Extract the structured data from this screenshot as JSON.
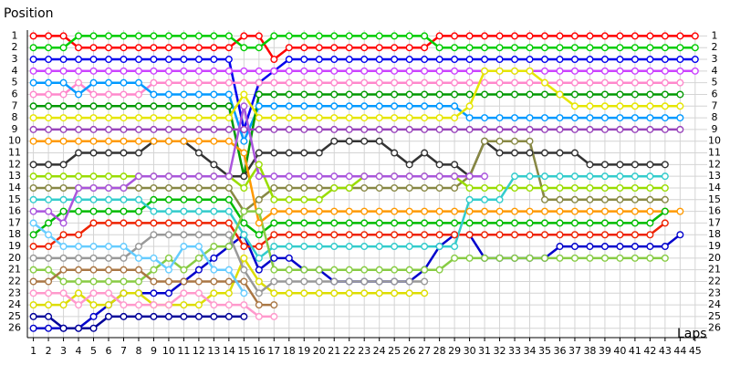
{
  "chart_data": {
    "type": "line",
    "y_label": "Position",
    "x_label": "Laps",
    "y_inverted": true,
    "grid": true,
    "marker": "circle",
    "xlim": [
      0.6,
      45.8
    ],
    "ylim": [
      0.5,
      26.8
    ],
    "x": [
      1,
      2,
      3,
      4,
      5,
      6,
      7,
      8,
      9,
      10,
      11,
      12,
      13,
      14,
      15,
      16,
      17,
      18,
      19,
      20,
      21,
      22,
      23,
      24,
      25,
      26,
      27,
      28,
      29,
      30,
      31,
      32,
      33,
      34,
      35,
      36,
      37,
      38,
      39,
      40,
      41,
      42,
      43,
      44,
      45
    ],
    "xticks": [
      1,
      2,
      3,
      4,
      5,
      6,
      7,
      8,
      9,
      10,
      11,
      12,
      13,
      14,
      15,
      16,
      17,
      18,
      19,
      20,
      21,
      22,
      23,
      24,
      25,
      26,
      27,
      28,
      29,
      30,
      31,
      32,
      33,
      34,
      35,
      36,
      37,
      38,
      39,
      40,
      41,
      42,
      43,
      44,
      45
    ],
    "yticks": [
      1,
      2,
      3,
      4,
      5,
      6,
      7,
      8,
      9,
      10,
      11,
      12,
      13,
      14,
      15,
      16,
      17,
      18,
      19,
      20,
      21,
      22,
      23,
      24,
      25,
      26
    ],
    "series": [
      {
        "color": "#ff0000",
        "values": [
          1,
          1,
          1,
          2,
          2,
          2,
          2,
          2,
          2,
          2,
          2,
          2,
          2,
          2,
          1,
          1,
          3,
          2,
          2,
          2,
          2,
          2,
          2,
          2,
          2,
          2,
          2,
          1,
          1,
          1,
          1,
          1,
          1,
          1,
          1,
          1,
          1,
          1,
          1,
          1,
          1,
          1,
          1,
          1,
          1
        ]
      },
      {
        "color": "#00cc00",
        "values": [
          2,
          2,
          2,
          1,
          1,
          1,
          1,
          1,
          1,
          1,
          1,
          1,
          1,
          1,
          2,
          2,
          1,
          1,
          1,
          1,
          1,
          1,
          1,
          1,
          1,
          1,
          1,
          2,
          2,
          2,
          2,
          2,
          2,
          2,
          2,
          2,
          2,
          2,
          2,
          2,
          2,
          2,
          2,
          2,
          2
        ]
      },
      {
        "color": "#0000ee",
        "values": [
          3,
          3,
          3,
          3,
          3,
          3,
          3,
          3,
          3,
          3,
          3,
          3,
          3,
          3,
          9,
          5,
          4,
          3,
          3,
          3,
          3,
          3,
          3,
          3,
          3,
          3,
          3,
          3,
          3,
          3,
          3,
          3,
          3,
          3,
          3,
          3,
          3,
          3,
          3,
          3,
          3,
          3,
          3,
          3,
          3
        ]
      },
      {
        "color": "#cc44ff",
        "values": [
          4,
          4,
          4,
          4,
          4,
          4,
          4,
          4,
          4,
          4,
          4,
          4,
          4,
          4,
          4,
          4,
          4,
          4,
          4,
          4,
          4,
          4,
          4,
          4,
          4,
          4,
          4,
          4,
          4,
          4,
          4,
          4,
          4,
          4,
          4,
          4,
          4,
          4,
          4,
          4,
          4,
          4,
          4,
          4,
          4
        ]
      },
      {
        "color": "#ff88cc",
        "values": [
          6,
          6,
          6,
          5,
          6,
          6,
          6,
          6,
          5,
          5,
          5,
          5,
          5,
          5,
          5,
          5,
          5,
          5,
          5,
          5,
          5,
          5,
          5,
          5,
          5,
          5,
          5,
          5,
          5,
          5,
          5,
          5,
          5,
          5,
          5,
          5,
          5,
          5,
          5,
          5,
          5,
          5,
          5,
          5,
          null
        ]
      },
      {
        "color": "#0099ff",
        "values": [
          5,
          5,
          5,
          6,
          5,
          5,
          5,
          5,
          6,
          6,
          6,
          6,
          6,
          6,
          10,
          7,
          7,
          7,
          7,
          7,
          7,
          7,
          7,
          7,
          7,
          7,
          7,
          7,
          7,
          8,
          8,
          8,
          8,
          8,
          8,
          8,
          8,
          8,
          8,
          8,
          8,
          8,
          8,
          8,
          null
        ]
      },
      {
        "color": "#009900",
        "values": [
          7,
          7,
          7,
          7,
          7,
          7,
          7,
          7,
          7,
          7,
          7,
          7,
          7,
          7,
          13,
          6,
          6,
          6,
          6,
          6,
          6,
          6,
          6,
          6,
          6,
          6,
          6,
          6,
          6,
          6,
          6,
          6,
          6,
          6,
          6,
          6,
          6,
          6,
          6,
          6,
          6,
          6,
          6,
          6,
          null
        ]
      },
      {
        "color": "#e6e600",
        "values": [
          8,
          8,
          8,
          8,
          8,
          8,
          8,
          8,
          8,
          8,
          8,
          8,
          8,
          8,
          6,
          8,
          8,
          8,
          8,
          8,
          8,
          8,
          8,
          8,
          8,
          8,
          8,
          8,
          8,
          7,
          4,
          4,
          4,
          4,
          5,
          6,
          7,
          7,
          7,
          7,
          7,
          7,
          7,
          7,
          null
        ]
      },
      {
        "color": "#9944bb",
        "values": [
          9,
          9,
          9,
          9,
          9,
          9,
          9,
          9,
          9,
          9,
          9,
          9,
          9,
          9,
          9,
          9,
          9,
          9,
          9,
          9,
          9,
          9,
          9,
          9,
          9,
          9,
          9,
          9,
          9,
          9,
          9,
          9,
          9,
          9,
          9,
          9,
          9,
          9,
          9,
          9,
          9,
          9,
          9,
          9,
          null
        ]
      },
      {
        "color": "#0000cc",
        "values": [
          26,
          26,
          26,
          26,
          25,
          24,
          23,
          23,
          23,
          23,
          22,
          21,
          20,
          19,
          18,
          21,
          20,
          20,
          21,
          21,
          22,
          22,
          22,
          22,
          22,
          22,
          21,
          19,
          18,
          18,
          20,
          20,
          20,
          20,
          20,
          19,
          19,
          19,
          19,
          19,
          19,
          19,
          19,
          18,
          null
        ]
      },
      {
        "color": "#333333",
        "values": [
          12,
          12,
          12,
          11,
          11,
          11,
          11,
          11,
          10,
          10,
          10,
          11,
          12,
          13,
          13,
          11,
          11,
          11,
          11,
          11,
          10,
          10,
          10,
          10,
          11,
          12,
          11,
          12,
          12,
          13,
          10,
          11,
          11,
          11,
          11,
          11,
          11,
          12,
          12,
          12,
          12,
          12,
          12,
          null,
          null
        ]
      },
      {
        "color": "#888844",
        "values": [
          14,
          14,
          14,
          14,
          14,
          14,
          14,
          14,
          14,
          14,
          14,
          14,
          14,
          14,
          16,
          15,
          14,
          14,
          14,
          14,
          14,
          14,
          14,
          14,
          14,
          14,
          14,
          14,
          14,
          13,
          10,
          10,
          10,
          10,
          15,
          15,
          15,
          15,
          15,
          15,
          15,
          15,
          15,
          null,
          null
        ]
      },
      {
        "color": "#ff9900",
        "values": [
          10,
          10,
          10,
          10,
          10,
          10,
          10,
          10,
          10,
          10,
          10,
          10,
          10,
          10,
          11,
          17,
          16,
          16,
          16,
          16,
          16,
          16,
          16,
          16,
          16,
          16,
          16,
          16,
          16,
          16,
          16,
          16,
          16,
          16,
          16,
          16,
          16,
          16,
          16,
          16,
          16,
          16,
          16,
          16,
          null
        ]
      },
      {
        "color": "#99dd00",
        "values": [
          13,
          13,
          13,
          13,
          13,
          13,
          13,
          13,
          13,
          13,
          13,
          13,
          13,
          13,
          14,
          12,
          15,
          15,
          15,
          15,
          14,
          14,
          13,
          13,
          13,
          13,
          13,
          13,
          13,
          14,
          14,
          14,
          14,
          14,
          14,
          14,
          14,
          14,
          14,
          14,
          14,
          14,
          14,
          null,
          null
        ]
      },
      {
        "color": "#00bb00",
        "values": [
          18,
          17,
          16,
          16,
          16,
          16,
          16,
          16,
          15,
          15,
          15,
          15,
          15,
          15,
          17,
          18,
          17,
          17,
          17,
          17,
          17,
          17,
          17,
          17,
          17,
          17,
          17,
          17,
          17,
          17,
          17,
          17,
          17,
          17,
          17,
          17,
          17,
          17,
          17,
          17,
          17,
          17,
          16,
          null,
          null
        ]
      },
      {
        "color": "#ee2200",
        "values": [
          19,
          19,
          18,
          18,
          17,
          17,
          17,
          17,
          17,
          17,
          17,
          17,
          17,
          17,
          19,
          19,
          18,
          18,
          18,
          18,
          18,
          18,
          18,
          18,
          18,
          18,
          18,
          18,
          18,
          18,
          18,
          18,
          18,
          18,
          18,
          18,
          18,
          18,
          18,
          18,
          18,
          18,
          17,
          null,
          null
        ]
      },
      {
        "color": "#33cccc",
        "values": [
          15,
          15,
          15,
          15,
          15,
          15,
          15,
          15,
          16,
          16,
          16,
          16,
          16,
          16,
          18,
          20,
          19,
          19,
          19,
          19,
          19,
          19,
          19,
          19,
          19,
          19,
          19,
          19,
          19,
          15,
          15,
          15,
          13,
          13,
          13,
          13,
          13,
          13,
          13,
          13,
          13,
          13,
          13,
          null,
          null
        ]
      },
      {
        "color": "#dddd00",
        "values": [
          24,
          24,
          24,
          23,
          24,
          24,
          23,
          23,
          24,
          24,
          24,
          24,
          23,
          23,
          20,
          22,
          23,
          23,
          23,
          23,
          23,
          23,
          23,
          23,
          23,
          23,
          23,
          null,
          null,
          null,
          null,
          null,
          null,
          null,
          null,
          null,
          null,
          null,
          null,
          null,
          null,
          null,
          null,
          null,
          null
        ]
      },
      {
        "color": "#88cc44",
        "values": [
          21,
          21,
          22,
          22,
          22,
          22,
          22,
          22,
          21,
          20,
          21,
          20,
          19,
          19,
          16,
          16,
          21,
          21,
          21,
          21,
          21,
          21,
          21,
          21,
          21,
          21,
          21,
          21,
          20,
          20,
          20,
          20,
          20,
          20,
          20,
          20,
          20,
          20,
          20,
          20,
          20,
          20,
          20,
          null,
          null
        ]
      },
      {
        "color": "#aa55dd",
        "values": [
          16,
          16,
          17,
          14,
          14,
          14,
          14,
          13,
          13,
          13,
          13,
          13,
          13,
          13,
          7,
          13,
          13,
          13,
          13,
          13,
          13,
          13,
          13,
          13,
          13,
          13,
          13,
          13,
          13,
          13,
          13,
          null,
          null,
          null,
          null,
          null,
          null,
          null,
          null,
          null,
          null,
          null,
          null,
          null,
          null
        ]
      },
      {
        "color": "#999999",
        "values": [
          20,
          20,
          20,
          20,
          20,
          20,
          20,
          19,
          18,
          18,
          18,
          18,
          18,
          18,
          21,
          23,
          22,
          22,
          22,
          22,
          22,
          22,
          22,
          22,
          22,
          22,
          22,
          null,
          null,
          null,
          null,
          null,
          null,
          null,
          null,
          null,
          null,
          null,
          null,
          null,
          null,
          null,
          null,
          null,
          null
        ]
      },
      {
        "color": "#aa7744",
        "values": [
          22,
          22,
          21,
          21,
          21,
          21,
          21,
          21,
          22,
          22,
          22,
          22,
          22,
          22,
          22,
          24,
          24,
          null,
          null,
          null,
          null,
          null,
          null,
          null,
          null,
          null,
          null,
          null,
          null,
          null,
          null,
          null,
          null,
          null,
          null,
          null,
          null,
          null,
          null,
          null,
          null,
          null,
          null,
          null,
          null
        ]
      },
      {
        "color": "#66ccff",
        "values": [
          17,
          18,
          19,
          19,
          19,
          19,
          19,
          20,
          20,
          21,
          19,
          19,
          21,
          21,
          23,
          null,
          null,
          null,
          null,
          null,
          null,
          null,
          null,
          null,
          null,
          null,
          null,
          null,
          null,
          null,
          null,
          null,
          null,
          null,
          null,
          null,
          null,
          null,
          null,
          null,
          null,
          null,
          null,
          null,
          null
        ]
      },
      {
        "color": "#ff99cc",
        "values": [
          23,
          23,
          23,
          24,
          23,
          23,
          24,
          24,
          24,
          24,
          23,
          23,
          24,
          24,
          24,
          25,
          25,
          null,
          null,
          null,
          null,
          null,
          null,
          null,
          null,
          null,
          null,
          null,
          null,
          null,
          null,
          null,
          null,
          null,
          null,
          null,
          null,
          null,
          null,
          null,
          null,
          null,
          null,
          null,
          null
        ]
      },
      {
        "color": "#000099",
        "values": [
          25,
          25,
          26,
          26,
          26,
          25,
          25,
          25,
          25,
          25,
          25,
          25,
          25,
          25,
          25,
          null,
          null,
          null,
          null,
          null,
          null,
          null,
          null,
          null,
          null,
          null,
          null,
          null,
          null,
          null,
          null,
          null,
          null,
          null,
          null,
          null,
          null,
          null,
          null,
          null,
          null,
          null,
          null,
          null,
          null
        ]
      }
    ]
  }
}
